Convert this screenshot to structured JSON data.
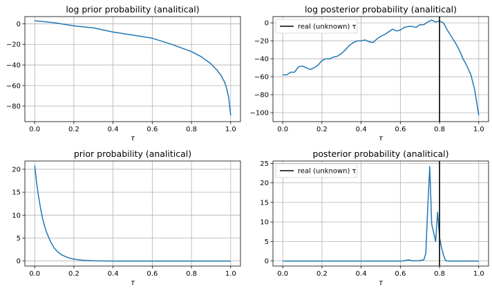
{
  "chart_data": [
    {
      "type": "line",
      "title": "log prior probability (analitical)",
      "xlabel": "τ",
      "ylabel": "",
      "xlim": [
        -0.05,
        1.05
      ],
      "ylim": [
        -95,
        7
      ],
      "xticks": [
        0.0,
        0.2,
        0.4,
        0.6,
        0.8,
        1.0
      ],
      "xtick_labels": [
        "0.0",
        "0.2",
        "0.4",
        "0.6",
        "0.8",
        "1.0"
      ],
      "yticks": [
        0,
        -20,
        -40,
        -60,
        -80
      ],
      "ytick_labels": [
        "0",
        "−20",
        "−40",
        "−60",
        "−80"
      ],
      "grid": true,
      "series": [
        {
          "color": "#1f77b4",
          "x": [
            0.0,
            0.1,
            0.2,
            0.3,
            0.4,
            0.5,
            0.6,
            0.7,
            0.8,
            0.85,
            0.9,
            0.93,
            0.95,
            0.97,
            0.98,
            0.99,
            1.0
          ],
          "y": [
            3,
            1,
            -2,
            -4,
            -8,
            -11,
            -14,
            -20,
            -27,
            -32,
            -39,
            -45,
            -50,
            -57,
            -63,
            -72,
            -89
          ]
        }
      ]
    },
    {
      "type": "line",
      "title": "log posterior probability (analitical)",
      "xlabel": "τ",
      "ylabel": "",
      "xlim": [
        -0.05,
        1.05
      ],
      "ylim": [
        -110,
        7
      ],
      "xticks": [
        0.0,
        0.2,
        0.4,
        0.6,
        0.8,
        1.0
      ],
      "xtick_labels": [
        "0.0",
        "0.2",
        "0.4",
        "0.6",
        "0.8",
        "1.0"
      ],
      "yticks": [
        0,
        -20,
        -40,
        -60,
        -80,
        -100
      ],
      "ytick_labels": [
        "0",
        "−20",
        "−40",
        "−60",
        "−80",
        "−100"
      ],
      "grid": true,
      "legend": {
        "position": "top-left",
        "entries": [
          {
            "label": "real (unknown) τ",
            "color": "#000000"
          }
        ]
      },
      "vline": {
        "x": 0.8,
        "color": "#000000"
      },
      "series": [
        {
          "color": "#1f77b4",
          "x": [
            0.0,
            0.02,
            0.04,
            0.06,
            0.08,
            0.1,
            0.12,
            0.14,
            0.16,
            0.18,
            0.2,
            0.22,
            0.24,
            0.26,
            0.28,
            0.3,
            0.32,
            0.34,
            0.36,
            0.38,
            0.4,
            0.42,
            0.44,
            0.46,
            0.48,
            0.5,
            0.52,
            0.54,
            0.56,
            0.58,
            0.6,
            0.62,
            0.64,
            0.66,
            0.68,
            0.7,
            0.72,
            0.74,
            0.76,
            0.78,
            0.8,
            0.82,
            0.84,
            0.86,
            0.88,
            0.9,
            0.92,
            0.94,
            0.96,
            0.98,
            1.0
          ],
          "y": [
            -58,
            -58,
            -55,
            -55,
            -49,
            -48,
            -50,
            -52,
            -50,
            -47,
            -42,
            -40,
            -40,
            -38,
            -37,
            -34,
            -30,
            -25,
            -22,
            -20,
            -20,
            -19,
            -21,
            -22,
            -18,
            -15,
            -13,
            -10,
            -7,
            -9,
            -8,
            -5,
            -4,
            -4,
            -5,
            -2,
            -2,
            1,
            3,
            1,
            2,
            0,
            -8,
            -15,
            -22,
            -30,
            -40,
            -48,
            -58,
            -75,
            -103
          ]
        }
      ]
    },
    {
      "type": "line",
      "title": "prior probability (analitical)",
      "xlabel": "τ",
      "ylabel": "",
      "xlim": [
        -0.05,
        1.05
      ],
      "ylim": [
        -1.1,
        21.8
      ],
      "xticks": [
        0.0,
        0.2,
        0.4,
        0.6,
        0.8,
        1.0
      ],
      "xtick_labels": [
        "0.0",
        "0.2",
        "0.4",
        "0.6",
        "0.8",
        "1.0"
      ],
      "yticks": [
        0,
        5,
        10,
        15,
        20
      ],
      "ytick_labels": [
        "0",
        "5",
        "10",
        "15",
        "20"
      ],
      "grid": true,
      "series": [
        {
          "color": "#1f77b4",
          "x": [
            0.0,
            0.01,
            0.02,
            0.03,
            0.04,
            0.05,
            0.06,
            0.08,
            0.1,
            0.12,
            0.14,
            0.16,
            0.18,
            0.2,
            0.25,
            0.3,
            0.4,
            0.5,
            0.6,
            0.8,
            1.0
          ],
          "y": [
            20.8,
            17.0,
            14.0,
            11.5,
            9.4,
            7.7,
            6.3,
            4.3,
            2.8,
            1.9,
            1.3,
            0.9,
            0.6,
            0.4,
            0.15,
            0.05,
            0.0,
            0.0,
            0.0,
            0.0,
            0.0
          ]
        }
      ]
    },
    {
      "type": "line",
      "title": "posterior probability (analitical)",
      "xlabel": "τ",
      "ylabel": "",
      "xlim": [
        -0.05,
        1.05
      ],
      "ylim": [
        -1.3,
        25.6
      ],
      "xticks": [
        0.0,
        0.2,
        0.4,
        0.6,
        0.8,
        1.0
      ],
      "xtick_labels": [
        "0.0",
        "0.2",
        "0.4",
        "0.6",
        "0.8",
        "1.0"
      ],
      "yticks": [
        0,
        5,
        10,
        15,
        20,
        25
      ],
      "ytick_labels": [
        "0",
        "5",
        "10",
        "15",
        "20",
        "25"
      ],
      "grid": true,
      "legend": {
        "position": "top-left",
        "entries": [
          {
            "label": "real (unknown) τ",
            "color": "#000000"
          }
        ]
      },
      "vline": {
        "x": 0.8,
        "color": "#000000"
      },
      "series": [
        {
          "color": "#1f77b4",
          "x": [
            0.0,
            0.2,
            0.4,
            0.6,
            0.62,
            0.64,
            0.66,
            0.68,
            0.7,
            0.72,
            0.73,
            0.74,
            0.75,
            0.76,
            0.78,
            0.79,
            0.8,
            0.81,
            0.82,
            0.83,
            0.84,
            0.9,
            1.0
          ],
          "y": [
            0,
            0,
            0,
            0,
            0.05,
            0.3,
            0.05,
            0.05,
            0.1,
            0.3,
            2.0,
            14.0,
            24.2,
            9.5,
            5.0,
            12.5,
            6.0,
            3.5,
            1.5,
            0.2,
            0.0,
            0.0,
            0.0
          ]
        }
      ]
    }
  ]
}
